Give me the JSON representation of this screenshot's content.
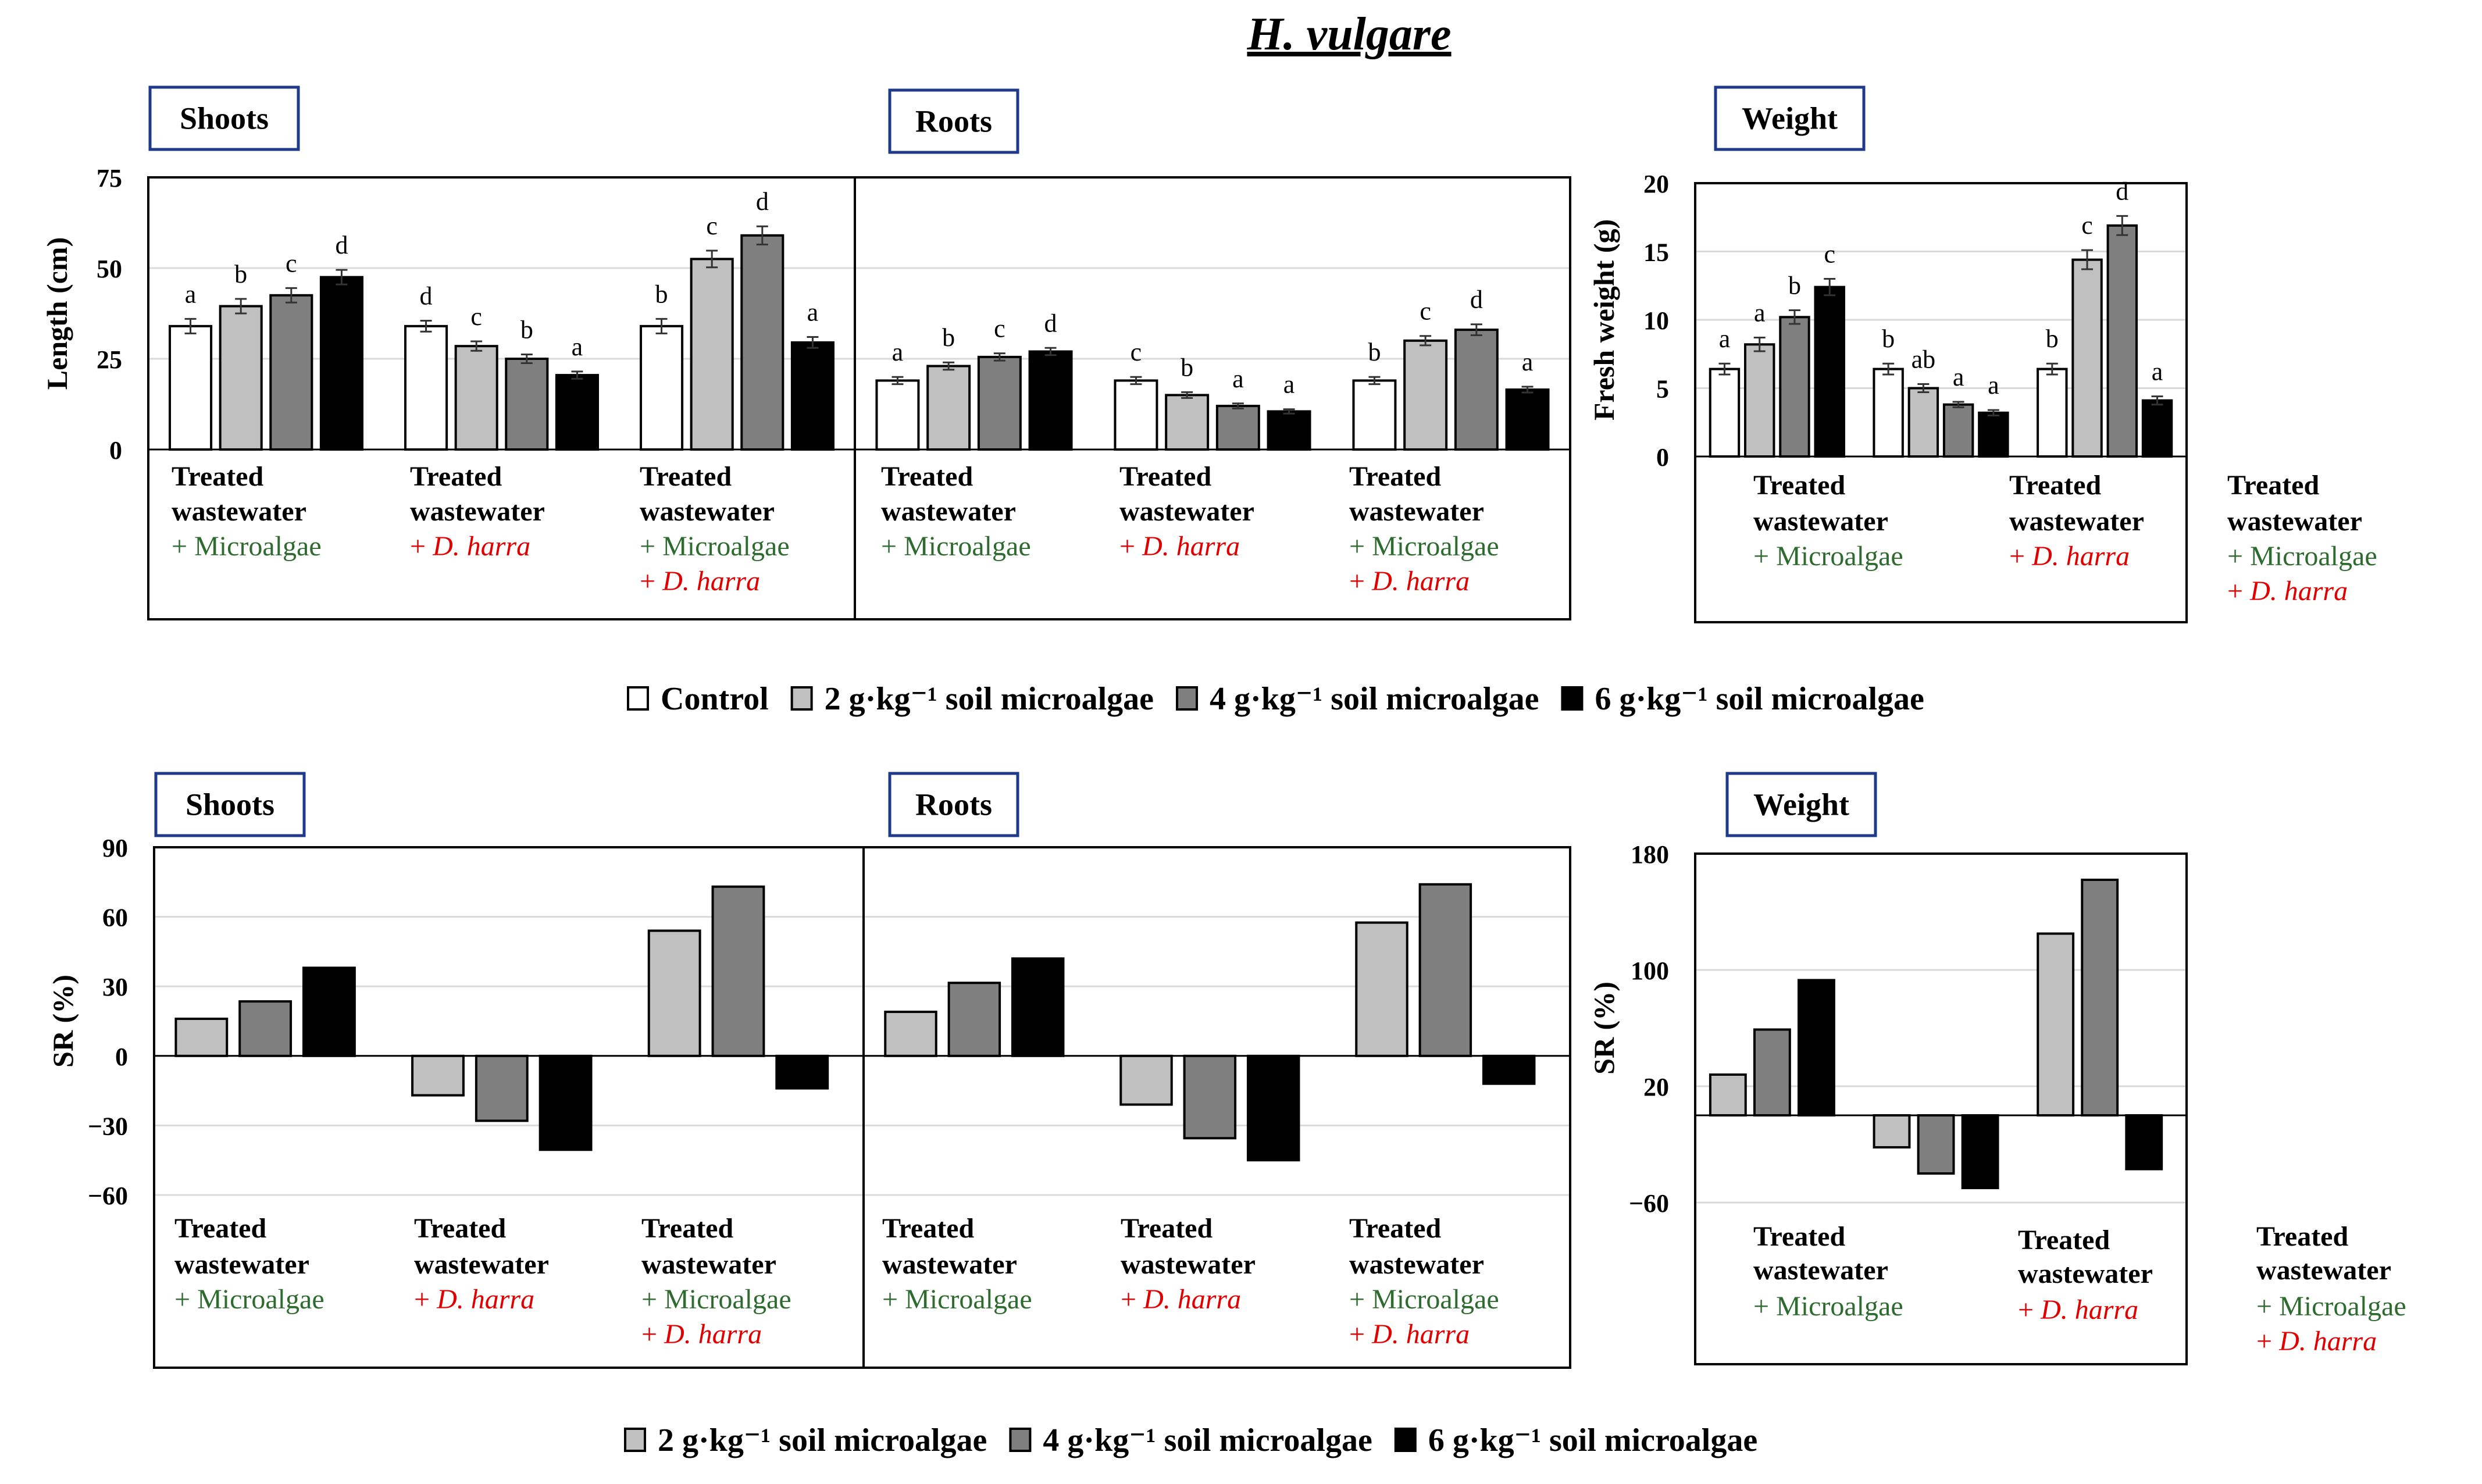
{
  "figure_title": "H. vulgare",
  "colors": {
    "control": "#ffffff",
    "g2": "#c0c0c0",
    "g4": "#7f7f7f",
    "g6": "#000000",
    "panel_label_border": "#1f3a8a",
    "microalgae_text": "#2e6b2e",
    "dharra_text": "#e00000"
  },
  "group_label_parts": {
    "treated": "Treated",
    "wastewater": "wastewater",
    "microalgae": "+ Microalgae",
    "dharra_prefix": "+ ",
    "dharra_italic": "D. harra"
  },
  "legend_top": [
    {
      "series": "control",
      "label": "Control"
    },
    {
      "series": "g2",
      "label": "2 g·kg⁻¹ soil microalgae"
    },
    {
      "series": "g4",
      "label": "4 g·kg⁻¹ soil microalgae"
    },
    {
      "series": "g6",
      "label": "6 g·kg⁻¹ soil microalgae"
    }
  ],
  "legend_bottom": [
    {
      "series": "g2",
      "label": "2 g·kg⁻¹ soil microalgae"
    },
    {
      "series": "g4",
      "label": "4 g·kg⁻¹ soil microalgae"
    },
    {
      "series": "g6",
      "label": "6 g·kg⁻¹ soil microalgae"
    }
  ],
  "chart_data": [
    {
      "id": "length",
      "type": "bar",
      "ylabel": "Length (cm)",
      "ylim": [
        0,
        75
      ],
      "yticks": [
        0,
        25,
        50,
        75
      ],
      "panels": [
        {
          "label": "Shoots",
          "groups": [
            {
              "kind": "microalgae",
              "values": [
                34,
                39.5,
                42.5,
                47.5
              ],
              "errors": [
                2,
                2,
                2,
                2
              ],
              "letters": [
                "a",
                "b",
                "c",
                "d"
              ]
            },
            {
              "kind": "dharra",
              "values": [
                34,
                28.5,
                25,
                20.5
              ],
              "errors": [
                1.5,
                1.3,
                1.2,
                1
              ],
              "letters": [
                "d",
                "c",
                "b",
                "a"
              ]
            },
            {
              "kind": "both",
              "values": [
                34,
                52.5,
                59,
                29.5
              ],
              "errors": [
                2,
                2.3,
                2.5,
                1.5
              ],
              "letters": [
                "b",
                "c",
                "d",
                "a"
              ]
            }
          ]
        },
        {
          "label": "Roots",
          "groups": [
            {
              "kind": "microalgae",
              "values": [
                19,
                23,
                25.5,
                27
              ],
              "errors": [
                1,
                1,
                1,
                1
              ],
              "letters": [
                "a",
                "b",
                "c",
                "d"
              ]
            },
            {
              "kind": "dharra",
              "values": [
                19,
                15,
                12,
                10.5
              ],
              "errors": [
                1,
                0.8,
                0.7,
                0.6
              ],
              "letters": [
                "c",
                "b",
                "a",
                "a"
              ]
            },
            {
              "kind": "both",
              "values": [
                19,
                30,
                33,
                16.5
              ],
              "errors": [
                1,
                1.3,
                1.5,
                0.8
              ],
              "letters": [
                "b",
                "c",
                "d",
                "a"
              ]
            }
          ]
        }
      ]
    },
    {
      "id": "weight",
      "type": "bar",
      "ylabel": "Fresh weight (g)",
      "ylim": [
        0,
        20
      ],
      "yticks": [
        0,
        5,
        10,
        15,
        20
      ],
      "panels": [
        {
          "label": "Weight",
          "groups": [
            {
              "kind": "microalgae",
              "values": [
                6.4,
                8.2,
                10.2,
                12.4
              ],
              "errors": [
                0.4,
                0.5,
                0.5,
                0.6
              ],
              "letters": [
                "a",
                "a",
                "b",
                "c"
              ]
            },
            {
              "kind": "dharra",
              "values": [
                6.4,
                5,
                3.8,
                3.2
              ],
              "errors": [
                0.4,
                0.3,
                0.2,
                0.2
              ],
              "letters": [
                "b",
                "ab",
                "a",
                "a"
              ]
            },
            {
              "kind": "both",
              "values": [
                6.4,
                14.4,
                16.9,
                4.1
              ],
              "errors": [
                0.4,
                0.7,
                0.7,
                0.3
              ],
              "letters": [
                "b",
                "c",
                "d",
                "a"
              ]
            }
          ]
        }
      ]
    },
    {
      "id": "sr_length",
      "type": "bar",
      "ylabel": "SR (%)",
      "ylim": [
        -60,
        90
      ],
      "yticks": [
        -60,
        -30,
        0,
        30,
        60,
        90
      ],
      "panels": [
        {
          "label": "Shoots",
          "groups": [
            {
              "kind": "microalgae",
              "values": [
                16,
                23.5,
                38
              ]
            },
            {
              "kind": "dharra",
              "values": [
                -17,
                -28,
                -40.5
              ]
            },
            {
              "kind": "both",
              "values": [
                54,
                73,
                -14
              ]
            }
          ]
        },
        {
          "label": "Roots",
          "groups": [
            {
              "kind": "microalgae",
              "values": [
                19,
                31.5,
                42
              ]
            },
            {
              "kind": "dharra",
              "values": [
                -21,
                -35.5,
                -45
              ]
            },
            {
              "kind": "both",
              "values": [
                57.5,
                74,
                -12
              ]
            }
          ]
        }
      ]
    },
    {
      "id": "sr_weight",
      "type": "bar",
      "ylabel": "SR (%)",
      "ylim": [
        -60,
        180
      ],
      "yticks": [
        -60,
        20,
        100,
        180
      ],
      "panels": [
        {
          "label": "Weight",
          "groups": [
            {
              "kind": "microalgae",
              "values": [
                28,
                59,
                93
              ]
            },
            {
              "kind": "dharra",
              "values": [
                -22,
                -40,
                -50
              ]
            },
            {
              "kind": "both",
              "values": [
                125,
                162,
                -37
              ]
            }
          ]
        }
      ]
    }
  ]
}
